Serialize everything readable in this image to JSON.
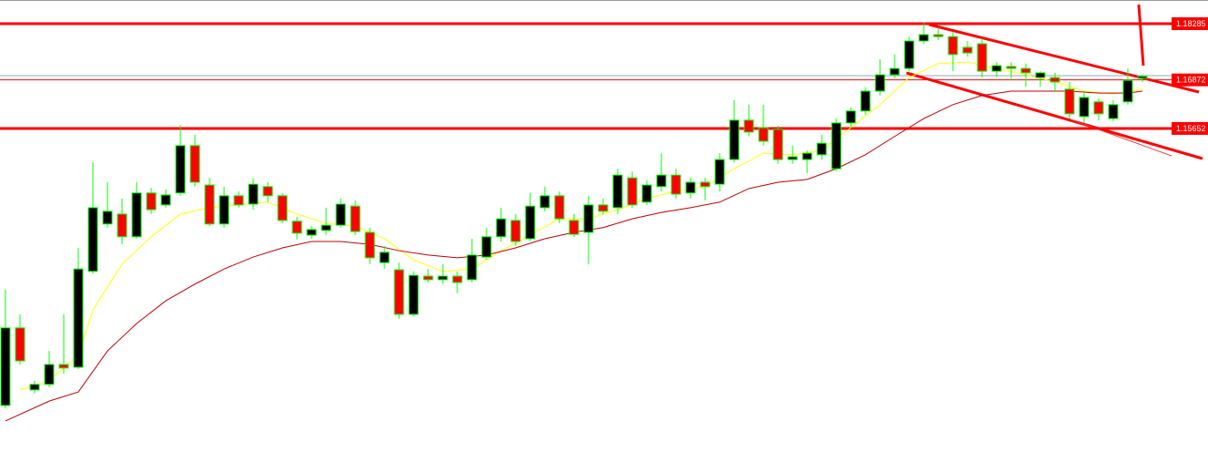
{
  "chart_data": {
    "type": "candlestick",
    "ylim": [
      1.0752,
      1.1888
    ],
    "up_color": "#000000",
    "down_color": "#ff0000",
    "wick_color": "#00ff00",
    "level_color": "#ff0000",
    "levels": [
      1.18285,
      1.16872,
      1.15652
    ],
    "open": [
      1.0869,
      1.1064,
      1.0908,
      1.0922,
      1.0972,
      1.0965,
      1.1206,
      1.1325,
      1.135,
      1.1293,
      1.1403,
      1.1373,
      1.1403,
      1.1522,
      1.1423,
      1.1325,
      1.1396,
      1.1375,
      1.1419,
      1.1396,
      1.1332,
      1.1297,
      1.1309,
      1.1322,
      1.137,
      1.1304,
      1.1228,
      1.121,
      1.1098,
      1.1194,
      1.1185,
      1.1194,
      1.1185,
      1.1242,
      1.1293,
      1.1334,
      1.1288,
      1.1366,
      1.1396,
      1.1334,
      1.1304,
      1.1373,
      1.1366,
      1.1441,
      1.138,
      1.1419,
      1.1448,
      1.1403,
      1.143,
      1.1425,
      1.1487,
      1.1586,
      1.1567,
      1.1563,
      1.1487,
      1.1487,
      1.1499,
      1.1464,
      1.1579,
      1.1609,
      1.1659,
      1.17,
      1.1716,
      1.1785,
      1.1801,
      1.1796,
      1.1769,
      1.1778,
      1.1709,
      1.1721,
      1.1716,
      1.1693,
      1.1693,
      1.1664,
      1.1595,
      1.1632,
      1.159,
      1.1632,
      1.1691
    ],
    "high": [
      1.116,
      1.1098,
      1.0931,
      1.1006,
      1.1098,
      1.1265,
      1.148,
      1.143,
      1.1389,
      1.143,
      1.1416,
      1.1412,
      1.1574,
      1.1549,
      1.1441,
      1.1419,
      1.1407,
      1.1439,
      1.143,
      1.1403,
      1.1343,
      1.132,
      1.1366,
      1.1389,
      1.1384,
      1.1316,
      1.127,
      1.1228,
      1.1206,
      1.1212,
      1.1224,
      1.1206,
      1.1288,
      1.1316,
      1.1366,
      1.135,
      1.1403,
      1.1419,
      1.1407,
      1.135,
      1.1396,
      1.1389,
      1.1464,
      1.1457,
      1.1435,
      1.1503,
      1.1464,
      1.1441,
      1.1441,
      1.1503,
      1.1636,
      1.1625,
      1.1625,
      1.1572,
      1.1522,
      1.151,
      1.1549,
      1.159,
      1.1618,
      1.1668,
      1.1739,
      1.1751,
      1.1796,
      1.1831,
      1.1819,
      1.1808,
      1.1785,
      1.1792,
      1.1732,
      1.1732,
      1.1728,
      1.1709,
      1.1705,
      1.1682,
      1.1659,
      1.1641,
      1.1636,
      1.1716,
      1.17
    ],
    "low": [
      1.0862,
      1.0972,
      1.0899,
      1.0915,
      1.0949,
      1.0961,
      1.1201,
      1.1316,
      1.1274,
      1.1288,
      1.135,
      1.1366,
      1.1396,
      1.1419,
      1.132,
      1.1316,
      1.1366,
      1.1361,
      1.138,
      1.1327,
      1.1286,
      1.1288,
      1.1297,
      1.1316,
      1.1297,
      1.1224,
      1.1212,
      1.1087,
      1.1093,
      1.1178,
      1.1174,
      1.1151,
      1.1178,
      1.1235,
      1.1281,
      1.127,
      1.1281,
      1.1357,
      1.1327,
      1.1293,
      1.1224,
      1.135,
      1.135,
      1.1366,
      1.1373,
      1.1407,
      1.1389,
      1.1389,
      1.1384,
      1.1407,
      1.148,
      1.1545,
      1.1522,
      1.1476,
      1.1476,
      1.1453,
      1.1487,
      1.1457,
      1.1567,
      1.1599,
      1.1648,
      1.1691,
      1.1709,
      1.1778,
      1.1787,
      1.1709,
      1.1746,
      1.1693,
      1.1693,
      1.1686,
      1.167,
      1.167,
      1.1659,
      1.159,
      1.1579,
      1.1586,
      1.1583,
      1.1625,
      1.1682
    ],
    "close": [
      1.1064,
      1.0981,
      1.0922,
      1.0972,
      1.0963,
      1.1212,
      1.1366,
      1.1357,
      1.1293,
      1.1403,
      1.1361,
      1.1398,
      1.1522,
      1.143,
      1.1325,
      1.1396,
      1.1373,
      1.1425,
      1.1396,
      1.1334,
      1.1302,
      1.1311,
      1.1322,
      1.1375,
      1.1306,
      1.124,
      1.1254,
      1.1098,
      1.1196,
      1.1185,
      1.1194,
      1.1178,
      1.1247,
      1.1293,
      1.1338,
      1.1281,
      1.137,
      1.1396,
      1.1338,
      1.1299,
      1.1373,
      1.1357,
      1.1448,
      1.1373,
      1.1423,
      1.1448,
      1.14,
      1.143,
      1.1419,
      1.1487,
      1.1586,
      1.1556,
      1.1533,
      1.1487,
      1.1494,
      1.1503,
      1.1528,
      1.1579,
      1.1609,
      1.1659,
      1.17,
      1.1716,
      1.1785,
      1.1801,
      1.1796,
      1.1751,
      1.1755,
      1.1709,
      1.1723,
      1.1716,
      1.1705,
      1.1705,
      1.1682,
      1.1602,
      1.1643,
      1.1602,
      1.1625,
      1.1686,
      1.1696
    ],
    "lines": [
      {
        "color": "#ffff00",
        "x": [
          1,
          3,
          5,
          6,
          8,
          10,
          12,
          14,
          16,
          18,
          20,
          22,
          24,
          26,
          28,
          30,
          32,
          34,
          36,
          38,
          40,
          42,
          44,
          46,
          48,
          50,
          52,
          54,
          56,
          58,
          60,
          62,
          64,
          66,
          68,
          70,
          72,
          74,
          76,
          78
        ],
        "values": [
          1.0908,
          1.0931,
          1.0995,
          1.1109,
          1.1224,
          1.1293,
          1.135,
          1.1366,
          1.1373,
          1.138,
          1.135,
          1.1327,
          1.132,
          1.1288,
          1.1235,
          1.1206,
          1.1212,
          1.1258,
          1.1297,
          1.1338,
          1.1338,
          1.1361,
          1.1389,
          1.1407,
          1.1419,
          1.1464,
          1.1503,
          1.1499,
          1.151,
          1.1567,
          1.1625,
          1.1693,
          1.1728,
          1.1732,
          1.1716,
          1.17,
          1.1682,
          1.1659,
          1.1652,
          1.1664
        ]
      },
      {
        "color": "#c00000",
        "x": [
          0,
          3,
          5,
          7,
          9,
          11,
          13,
          15,
          17,
          19,
          21,
          23,
          25,
          27,
          29,
          31,
          33,
          35,
          37,
          39,
          41,
          43,
          45,
          47,
          49,
          51,
          53,
          55,
          57,
          59,
          61,
          63,
          65,
          67,
          69,
          71,
          73,
          75,
          77,
          78
        ],
        "values": [
          1.083,
          1.088,
          1.0903,
          1.1006,
          1.1075,
          1.1132,
          1.1174,
          1.1212,
          1.1242,
          1.1265,
          1.1281,
          1.1281,
          1.1274,
          1.1258,
          1.1247,
          1.124,
          1.1247,
          1.1265,
          1.1288,
          1.1304,
          1.1316,
          1.1338,
          1.1354,
          1.1366,
          1.138,
          1.1414,
          1.143,
          1.1437,
          1.1464,
          1.1499,
          1.1545,
          1.159,
          1.1625,
          1.1648,
          1.1659,
          1.1659,
          1.1659,
          1.1654,
          1.1654,
          1.1659
        ]
      }
    ]
  }
}
